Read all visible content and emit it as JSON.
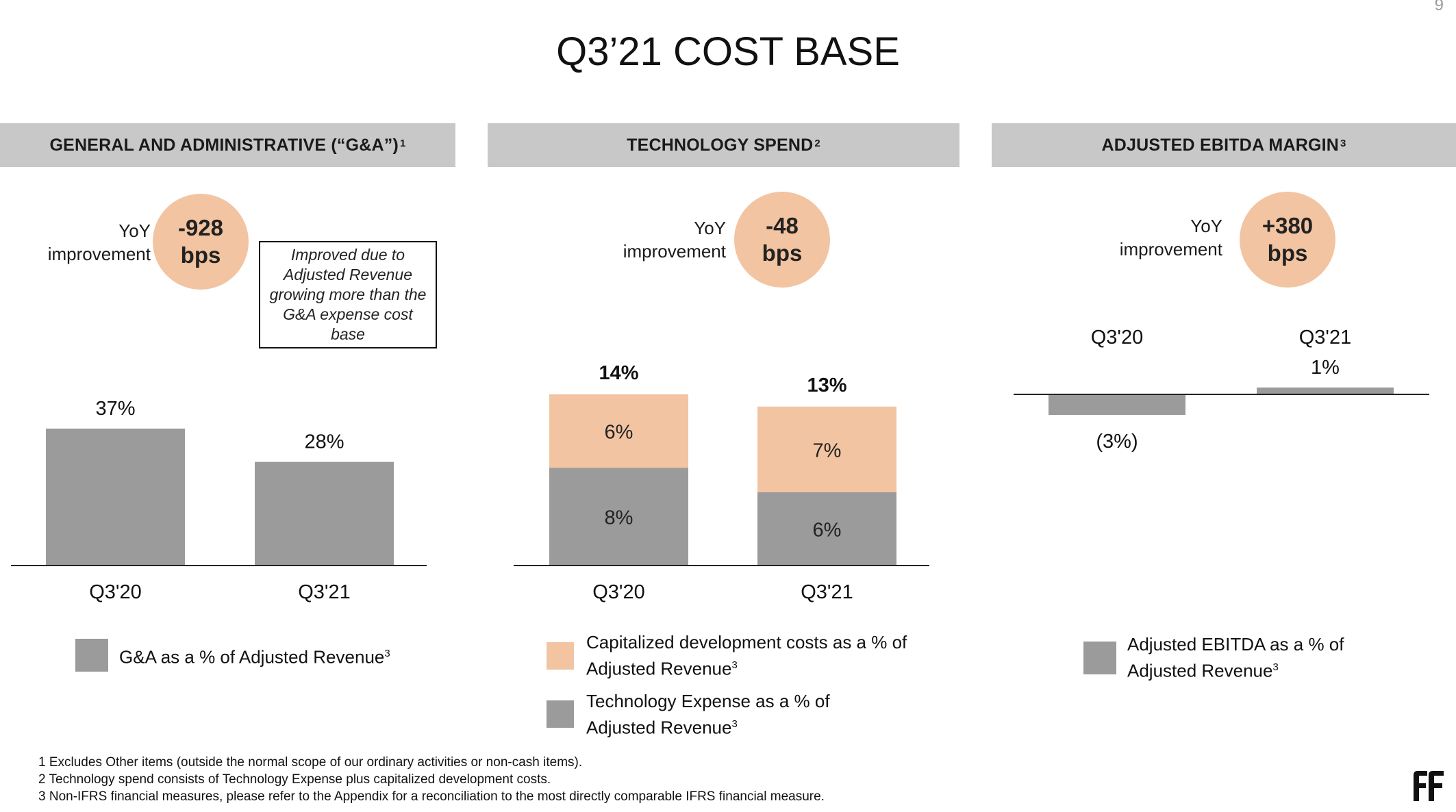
{
  "page_number": "9",
  "title": "Q3’21 COST BASE",
  "panels": {
    "ga": {
      "header": "GENERAL AND ADMINISTRATIVE (“G&A”)",
      "header_sup": "1",
      "yoy_label_line1": "YoY",
      "yoy_label_line2": "improvement",
      "bubble_value": "-928",
      "bubble_unit": "bps",
      "note": "Improved due to Adjusted Revenue growing more than the G&A expense cost base",
      "legend": [
        {
          "text": "G&A as a % of Adjusted Revenue",
          "sup": "3",
          "color": "#9b9b9b"
        }
      ]
    },
    "tech": {
      "header": "TECHNOLOGY SPEND",
      "header_sup": "2",
      "yoy_label_line1": "YoY",
      "yoy_label_line2": "improvement",
      "bubble_value": "-48",
      "bubble_unit": "bps",
      "legend": [
        {
          "text1": "Capitalized development costs as a % of",
          "text2": "Adjusted Revenue",
          "sup": "3",
          "color": "#f2c4a1"
        },
        {
          "text1": "Technology Expense as a % of",
          "text2": "Adjusted Revenue",
          "sup": "3",
          "color": "#9b9b9b"
        }
      ]
    },
    "ebitda": {
      "header": "ADJUSTED EBITDA MARGIN",
      "header_sup": "3",
      "yoy_label_line1": "YoY",
      "yoy_label_line2": "improvement",
      "bubble_value": "+380",
      "bubble_unit": "bps",
      "legend": [
        {
          "text1": "Adjusted EBITDA as a % of",
          "text2": "Adjusted Revenue",
          "sup": "3",
          "color": "#9b9b9b"
        }
      ]
    }
  },
  "chart_data": [
    {
      "type": "bar",
      "categories": [
        "Q3'20",
        "Q3'21"
      ],
      "values": [
        37,
        28
      ],
      "value_labels": [
        "37%",
        "28%"
      ],
      "ylim": [
        0,
        40
      ],
      "color": "#9b9b9b"
    },
    {
      "type": "bar",
      "stacked": true,
      "categories": [
        "Q3'20",
        "Q3'21"
      ],
      "series": [
        {
          "name": "Technology Expense as a % of Adjusted Revenue",
          "values": [
            8,
            6
          ],
          "labels": [
            "8%",
            "6%"
          ],
          "color": "#9b9b9b"
        },
        {
          "name": "Capitalized development costs as a % of Adjusted Revenue",
          "values": [
            6,
            7
          ],
          "labels": [
            "6%",
            "7%"
          ],
          "color": "#f2c4a1"
        }
      ],
      "totals": [
        "14%",
        "13%"
      ],
      "total_values": [
        14,
        13
      ],
      "ylim": [
        0,
        16
      ]
    },
    {
      "type": "bar",
      "categories": [
        "Q3'20",
        "Q3'21"
      ],
      "values": [
        -3,
        1
      ],
      "value_labels": [
        "(3%)",
        "1%"
      ],
      "ylim": [
        -10,
        3
      ],
      "color": "#9b9b9b"
    }
  ],
  "footnotes": [
    "1 Excludes Other items (outside the normal scope of our ordinary activities or non-cash items).",
    "2 Technology spend consists of Technology Expense plus capitalized development costs.",
    "3 Non-IFRS financial measures, please refer to the Appendix for a reconciliation to the most directly comparable IFRS financial measure."
  ],
  "logo_text": "FF"
}
